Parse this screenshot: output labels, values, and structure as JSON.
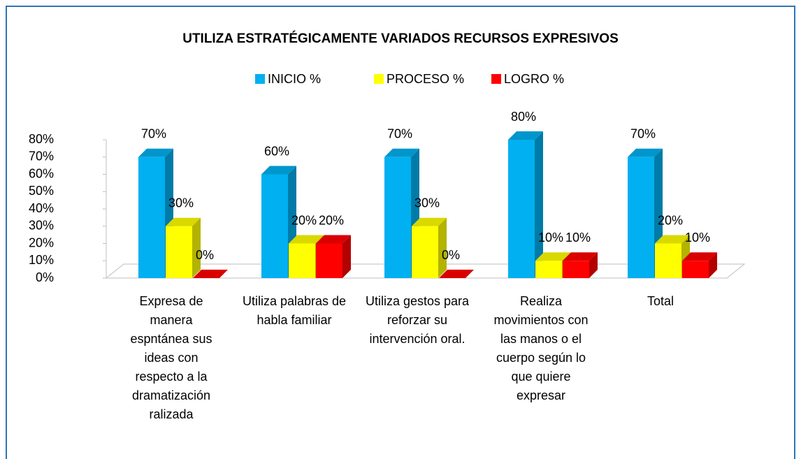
{
  "chart_data": {
    "type": "bar3d",
    "title": "UTILIZA ESTRATÉGICAMENTE VARIADOS RECURSOS EXPRESIVOS",
    "categories": [
      "Expresa de manera espntánea sus ideas con respecto a la dramatización ralizada",
      "Utiliza palabras de habla familiar",
      "Utiliza gestos para reforzar su intervención oral.",
      "Realiza movimientos con las manos o el cuerpo según lo que quiere expresar",
      "Total"
    ],
    "series": [
      {
        "name": "INICIO %",
        "color": "#00b0f0",
        "values": [
          70,
          60,
          70,
          80,
          70
        ]
      },
      {
        "name": "PROCESO %",
        "color": "#ffff00",
        "values": [
          30,
          20,
          30,
          10,
          20
        ]
      },
      {
        "name": "LOGRO %",
        "color": "#ff0000",
        "values": [
          0,
          20,
          0,
          10,
          10
        ]
      }
    ],
    "ylim": [
      0,
      80
    ],
    "yticks": [
      {
        "value": 0,
        "label": "0%"
      },
      {
        "value": 10,
        "label": "10%"
      },
      {
        "value": 20,
        "label": "20%"
      },
      {
        "value": 30,
        "label": "30%"
      },
      {
        "value": 40,
        "label": "40%"
      },
      {
        "value": 50,
        "label": "50%"
      },
      {
        "value": 60,
        "label": "60%"
      },
      {
        "value": 70,
        "label": "70%"
      },
      {
        "value": 80,
        "label": "80%"
      }
    ],
    "value_labels": [
      [
        "70%",
        "60%",
        "70%",
        "80%",
        "70%"
      ],
      [
        "30%",
        "20%",
        "30%",
        "10%",
        "20%"
      ],
      [
        "0%",
        "20%",
        "0%",
        "10%",
        "10%"
      ]
    ],
    "legend": "top",
    "grid": false
  }
}
